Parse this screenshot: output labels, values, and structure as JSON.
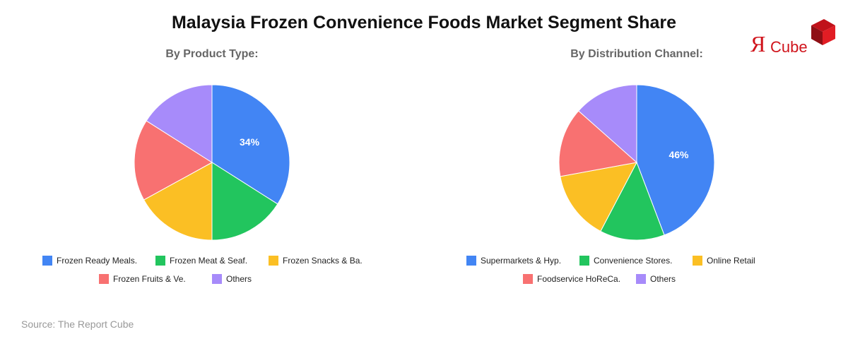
{
  "title": "Malaysia Frozen Convenience Foods Market Segment Share",
  "source": "Source: The Report Cube",
  "logo": {
    "mark": "Я",
    "text": "Cube"
  },
  "colors": {
    "blue": "#4285f4",
    "green": "#22c55e",
    "yellow": "#fbbf24",
    "red": "#f87171",
    "purple": "#a78bfa"
  },
  "chart_data": [
    {
      "type": "pie",
      "title": "By Product Type:",
      "labels": [
        "Frozen Ready Meals.",
        "Frozen Meat & Seaf.",
        "Frozen Snacks & Ba.",
        "Frozen Fruits & Ve.",
        "Others"
      ],
      "values": [
        34,
        16,
        17,
        17,
        16
      ],
      "shown_labels": [
        "34%",
        "",
        "",
        "",
        ""
      ],
      "colors": [
        "#4285f4",
        "#22c55e",
        "#fbbf24",
        "#f87171",
        "#a78bfa"
      ],
      "legend_position": "bottom"
    },
    {
      "type": "pie",
      "title": "By Distribution Channel:",
      "labels": [
        "Supermarkets & Hyp.",
        "Convenience Stores.",
        "Online Retail",
        "Foodservice HoReCa.",
        "Others"
      ],
      "values": [
        46,
        14,
        15,
        15,
        14
      ],
      "shown_labels": [
        "46%",
        "",
        "",
        "",
        ""
      ],
      "colors": [
        "#4285f4",
        "#22c55e",
        "#fbbf24",
        "#f87171",
        "#a78bfa"
      ],
      "legend_position": "bottom"
    }
  ]
}
